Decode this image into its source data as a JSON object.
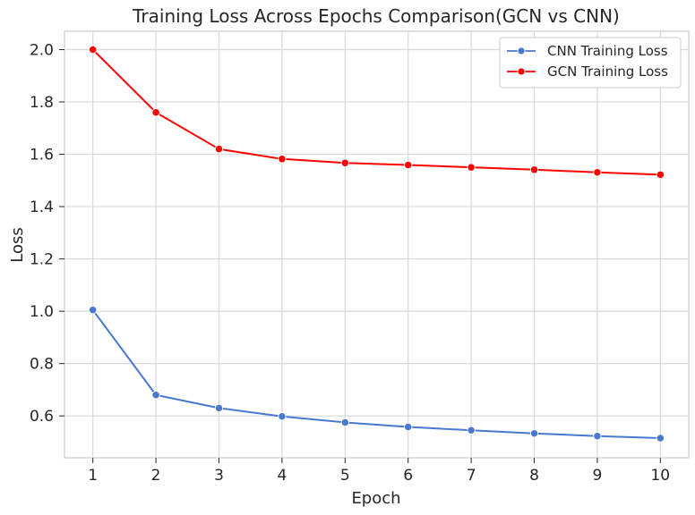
{
  "chart_data": {
    "type": "line",
    "title": "Training Loss Across Epochs Comparison(GCN vs CNN)",
    "xlabel": "Epoch",
    "ylabel": "Loss",
    "x": [
      1,
      2,
      3,
      4,
      5,
      6,
      7,
      8,
      9,
      10
    ],
    "xlim": [
      0.55,
      10.45
    ],
    "ylim": [
      0.44,
      2.07
    ],
    "x_ticks": [
      "1",
      "2",
      "3",
      "4",
      "5",
      "6",
      "7",
      "8",
      "9",
      "10"
    ],
    "y_ticks": [
      "0.6",
      "0.8",
      "1.0",
      "1.2",
      "1.4",
      "1.6",
      "1.8",
      "2.0"
    ],
    "grid": true,
    "legend_position": "top-right",
    "series": [
      {
        "name": "CNN Training Loss",
        "color": "#4878cf",
        "values": [
          1.005,
          0.68,
          0.63,
          0.598,
          0.575,
          0.558,
          0.545,
          0.533,
          0.523,
          0.515
        ]
      },
      {
        "name": "GCN Training Loss",
        "color": "#ff0000",
        "values": [
          2.0,
          1.76,
          1.62,
          1.582,
          1.567,
          1.559,
          1.55,
          1.541,
          1.531,
          1.522
        ]
      }
    ]
  }
}
